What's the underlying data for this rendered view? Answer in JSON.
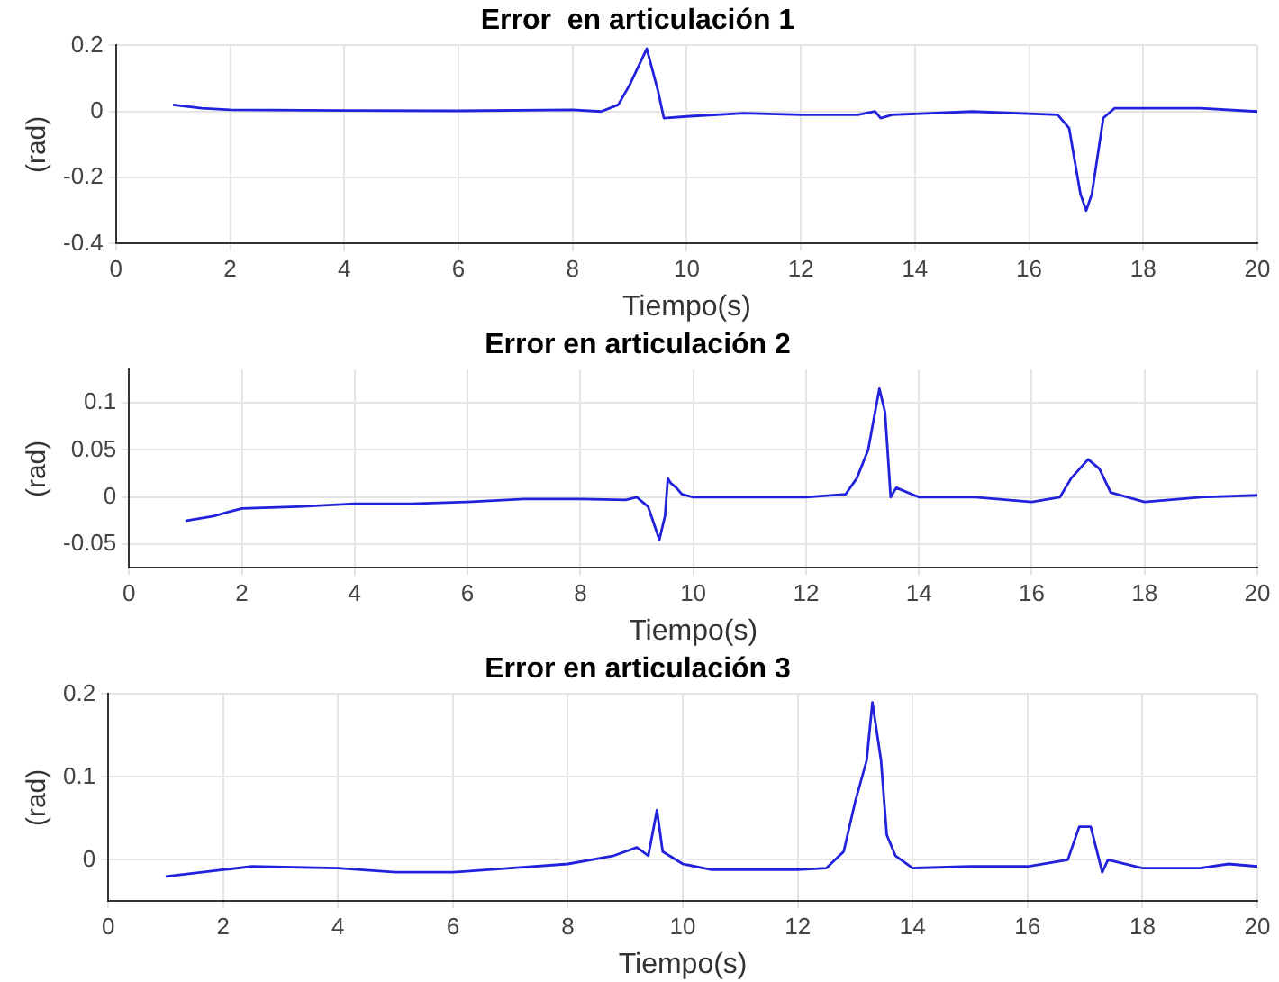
{
  "chart_data": [
    {
      "type": "line",
      "title": "Error  en articulación 1",
      "xlabel": "Tiempo(s)",
      "ylabel": "(rad)",
      "xlim": [
        0,
        20
      ],
      "xticks": [
        0,
        2,
        4,
        6,
        8,
        10,
        12,
        14,
        16,
        18,
        20
      ],
      "ylim": [
        -0.4,
        0.2
      ],
      "yticks": [
        -0.4,
        -0.2,
        0,
        0.2
      ],
      "grid": true,
      "marker": "none",
      "line_style": "solid",
      "x": [
        1,
        1.5,
        2,
        4,
        6,
        8,
        8.5,
        8.8,
        9.0,
        9.3,
        9.5,
        9.6,
        10,
        11,
        12,
        13,
        13.3,
        13.4,
        13.6,
        15,
        16.5,
        16.7,
        16.9,
        17.0,
        17.1,
        17.3,
        17.5,
        18,
        19,
        20
      ],
      "series": [
        {
          "color": "#2222dd",
          "values": [
            0.02,
            0.01,
            0.005,
            0.003,
            0.002,
            0.005,
            0.0,
            0.02,
            0.08,
            0.19,
            0.06,
            -0.02,
            -0.015,
            -0.005,
            -0.01,
            -0.01,
            0.0,
            -0.02,
            -0.01,
            0.0,
            -0.01,
            -0.05,
            -0.25,
            -0.3,
            -0.25,
            -0.02,
            0.01,
            0.01,
            0.01,
            0.0
          ]
        }
      ]
    },
    {
      "type": "line",
      "title": "Error en articulación 2",
      "xlabel": "Tiempo(s)",
      "ylabel": "(rad)",
      "xlim": [
        0,
        20
      ],
      "xticks": [
        0,
        2,
        4,
        6,
        8,
        10,
        12,
        14,
        16,
        18,
        20
      ],
      "ylim": [
        -0.075,
        0.135
      ],
      "yticks": [
        -0.05,
        0,
        0.05,
        0.1
      ],
      "grid": true,
      "marker": "none",
      "line_style": "solid",
      "x": [
        1,
        1.5,
        1.8,
        2,
        3,
        4,
        5,
        6,
        7,
        8,
        8.8,
        9.0,
        9.2,
        9.4,
        9.5,
        9.55,
        9.6,
        9.7,
        9.8,
        10,
        12,
        12.7,
        12.9,
        13.1,
        13.3,
        13.4,
        13.5,
        13.6,
        14,
        15,
        16,
        16.5,
        16.7,
        17.0,
        17.2,
        17.4,
        18,
        19,
        20
      ],
      "series": [
        {
          "color": "#2222dd",
          "values": [
            -0.025,
            -0.02,
            -0.015,
            -0.012,
            -0.01,
            -0.007,
            -0.007,
            -0.005,
            -0.002,
            -0.002,
            -0.003,
            0.0,
            -0.01,
            -0.045,
            -0.02,
            0.02,
            0.015,
            0.01,
            0.003,
            0.0,
            0.0,
            0.003,
            0.02,
            0.05,
            0.115,
            0.09,
            0.0,
            0.01,
            0.0,
            0.0,
            -0.005,
            0.0,
            0.02,
            0.04,
            0.03,
            0.005,
            -0.005,
            0.0,
            0.002
          ]
        }
      ]
    },
    {
      "type": "line",
      "title": "Error en articulación 3",
      "xlabel": "Tiempo(s)",
      "ylabel": "(rad)",
      "xlim": [
        0,
        20
      ],
      "xticks": [
        0,
        2,
        4,
        6,
        8,
        10,
        12,
        14,
        16,
        18,
        20
      ],
      "ylim": [
        -0.05,
        0.2
      ],
      "yticks": [
        0,
        0.1,
        0.2
      ],
      "grid": true,
      "marker": "none",
      "line_style": "solid",
      "x": [
        1,
        2,
        2.5,
        4,
        5,
        6,
        7,
        8,
        8.8,
        9.2,
        9.4,
        9.55,
        9.65,
        10,
        10.5,
        12,
        12.5,
        12.8,
        13.0,
        13.2,
        13.3,
        13.45,
        13.55,
        13.7,
        14,
        15,
        16,
        16.7,
        16.9,
        17.1,
        17.3,
        17.4,
        18,
        19,
        19.5,
        20
      ],
      "series": [
        {
          "color": "#2222dd",
          "values": [
            -0.02,
            -0.012,
            -0.008,
            -0.01,
            -0.015,
            -0.015,
            -0.01,
            -0.005,
            0.005,
            0.015,
            0.005,
            0.06,
            0.01,
            -0.005,
            -0.012,
            -0.012,
            -0.01,
            0.01,
            0.07,
            0.12,
            0.19,
            0.12,
            0.03,
            0.005,
            -0.01,
            -0.008,
            -0.008,
            0.0,
            0.04,
            0.04,
            -0.015,
            0.0,
            -0.01,
            -0.01,
            -0.005,
            -0.008
          ]
        }
      ]
    }
  ]
}
